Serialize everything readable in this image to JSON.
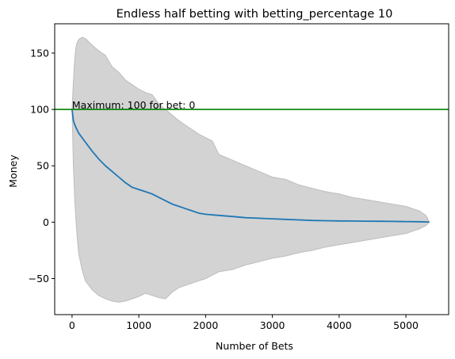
{
  "chart_data": {
    "type": "line",
    "title": "Endless half betting with betting_percentage 10",
    "xlabel": "Number of Bets",
    "ylabel": "Money",
    "xlim": [
      -260,
      5640
    ],
    "ylim": [
      -82,
      176
    ],
    "xticks": [
      0,
      1000,
      2000,
      3000,
      4000,
      5000
    ],
    "yticks": [
      -50,
      0,
      50,
      100,
      150
    ],
    "xtick_labels": [
      "0",
      "1000",
      "2000",
      "3000",
      "4000",
      "5000"
    ],
    "ytick_labels": [
      "−50",
      "0",
      "50",
      "100",
      "150"
    ],
    "grid": false,
    "series": [
      {
        "color": "#1f77b4",
        "x": [
          0,
          20,
          50,
          100,
          150,
          200,
          250,
          300,
          400,
          500,
          600,
          700,
          800,
          900,
          1000,
          1100,
          1200,
          1300,
          1400,
          1500,
          1600,
          1700,
          1800,
          1900,
          2000,
          2200,
          2400,
          2600,
          2800,
          3000,
          3200,
          3400,
          3600,
          3800,
          4000,
          4200,
          4400,
          4600,
          4800,
          5000,
          5200,
          5350
        ],
        "y": [
          100,
          90,
          85,
          79,
          75,
          71,
          67,
          63,
          56,
          50,
          45,
          40,
          35,
          31,
          29,
          27,
          25,
          22,
          19,
          16,
          14,
          12,
          10,
          8,
          7,
          6,
          5,
          4,
          3.5,
          3,
          2.5,
          2,
          1.5,
          1.3,
          1.1,
          1,
          0.9,
          0.8,
          0.7,
          0.5,
          0.4,
          0.2
        ]
      }
    ],
    "band": {
      "color": "#d3d3d3",
      "x": [
        0,
        20,
        40,
        60,
        80,
        100,
        150,
        200,
        300,
        400,
        500,
        600,
        700,
        800,
        900,
        1000,
        1100,
        1200,
        1300,
        1400,
        1500,
        1600,
        1700,
        1800,
        1900,
        2000,
        2100,
        2200,
        2400,
        2600,
        2800,
        3000,
        3200,
        3400,
        3600,
        3800,
        4000,
        4200,
        4400,
        4600,
        4800,
        5000,
        5100,
        5200,
        5300,
        5350
      ],
      "upper": [
        100,
        125,
        145,
        156,
        160,
        162,
        164,
        163,
        157,
        152,
        148,
        138,
        133,
        126,
        122,
        118,
        115,
        113,
        105,
        100,
        95,
        90,
        86,
        82,
        78,
        75,
        72,
        60,
        55,
        50,
        45,
        40,
        38,
        33,
        30,
        27,
        25,
        22,
        20,
        18,
        16,
        14,
        12,
        10,
        6,
        0
      ],
      "lower": [
        100,
        50,
        20,
        0,
        -15,
        -28,
        -42,
        -52,
        -60,
        -65,
        -68,
        -70,
        -71,
        -70,
        -68,
        -66,
        -63,
        -65,
        -67,
        -68,
        -62,
        -58,
        -56,
        -54,
        -52,
        -50,
        -47,
        -44,
        -42,
        -38,
        -35,
        -32,
        -30,
        -27,
        -25,
        -22,
        -20,
        -18,
        -16,
        -14,
        -12,
        -10,
        -8,
        -6,
        -3,
        0
      ]
    },
    "hline": {
      "y": 100,
      "color": "#008000"
    },
    "annotation": {
      "text": "Maximum: 100 for bet: 0",
      "x": 0,
      "y": 100
    }
  }
}
